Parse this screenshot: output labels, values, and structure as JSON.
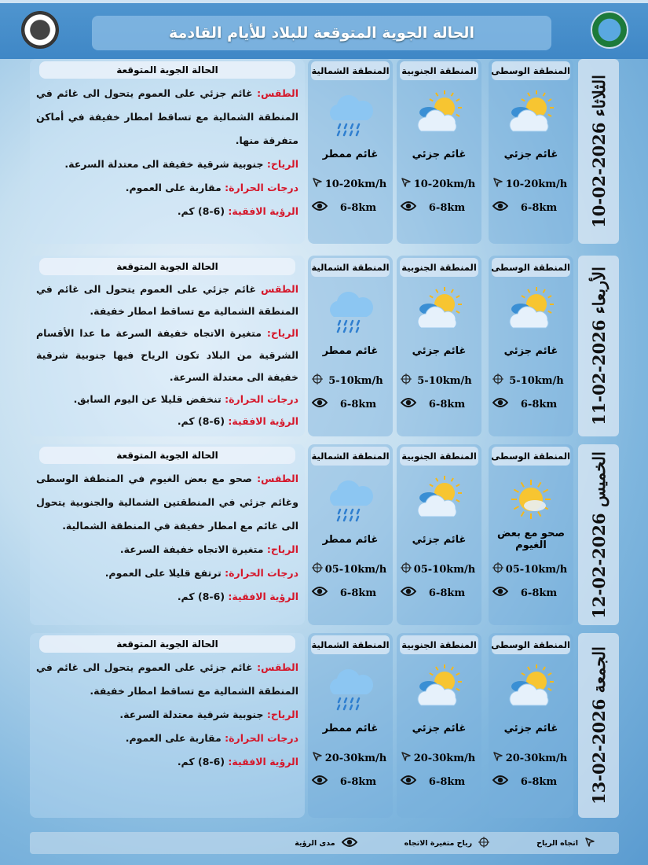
{
  "header": {
    "title": "الحالة الجوية المتوقعة للبلاد للأيام القادمة"
  },
  "colors": {
    "label_red": "#d5172a",
    "band_blue": "#3f87c6"
  },
  "panel_heading": "الحالة الجوية المتوقعة",
  "region_names": [
    "المنطقة الوسطى",
    "المنطقة الجنوبية",
    "المنطقة الشمالية"
  ],
  "days": [
    {
      "date": "الثلاثاء 2026-02-10",
      "regions": [
        {
          "icon": "partly-cloudy-icon",
          "condition": "غائم جزئي",
          "wind_icon": "wind-direction-icon",
          "wind": "10-20km/h",
          "visibility": "6-8km"
        },
        {
          "icon": "partly-cloudy-icon",
          "condition": "غائم جزئي",
          "wind_icon": "wind-direction-icon",
          "wind": "10-20km/h",
          "visibility": "6-8km"
        },
        {
          "icon": "rain-cloud-icon",
          "condition": "غائم ممطر",
          "wind_icon": "wind-direction-icon",
          "wind": "10-20km/h",
          "visibility": "6-8km"
        }
      ],
      "lines": [
        {
          "label": "الطقس:",
          "text": "غائم جزئي على العموم يتحول الى غائم في المنطقة الشمالية مع تساقط امطار خفيفة في أماكن متفرقة منها."
        },
        {
          "label": "الرياح:",
          "text": "جنوبية شرقية خفيفة الى معتدلة السرعة."
        },
        {
          "label": "درجات الحرارة:",
          "text": "مقاربة على العموم."
        },
        {
          "label": "الرؤية الافقية:",
          "text": "(6-8) كم."
        }
      ]
    },
    {
      "date": "الأربعاء 2026-02-11",
      "regions": [
        {
          "icon": "partly-cloudy-icon",
          "condition": "غائم جزئي",
          "wind_icon": "variable-wind-icon",
          "wind": "5-10km/h",
          "visibility": "6-8km"
        },
        {
          "icon": "partly-cloudy-icon",
          "condition": "غائم جزئي",
          "wind_icon": "variable-wind-icon",
          "wind": "5-10km/h",
          "visibility": "6-8km"
        },
        {
          "icon": "rain-cloud-icon",
          "condition": "غائم ممطر",
          "wind_icon": "variable-wind-icon",
          "wind": "5-10km/h",
          "visibility": "6-8km"
        }
      ],
      "lines": [
        {
          "label": "الطقس",
          "text": "غائم جزئي على العموم يتحول الى غائم في المنطقة الشمالية مع تساقط امطار خفيفة."
        },
        {
          "label": "الرياح:",
          "text": "متغيرة الاتجاه خفيفة السرعة ما عدا الأقسام الشرقية من البلاد تكون الرياح فيها جنوبية شرقية خفيفة الى معتدلة السرعة."
        },
        {
          "label": "درجات الحرارة:",
          "text": "تنخفض قليلا عن اليوم السابق."
        },
        {
          "label": "الرؤية الافقية:",
          "text": "(6-8) كم."
        }
      ]
    },
    {
      "date": "الخميس 2026-02-12",
      "regions": [
        {
          "icon": "mostly-sunny-icon",
          "condition": "صحو مع بعض الغيوم",
          "wind_icon": "variable-wind-icon",
          "wind": "05-10km/h",
          "visibility": "6-8km"
        },
        {
          "icon": "partly-cloudy-icon",
          "condition": "غائم جزئي",
          "wind_icon": "variable-wind-icon",
          "wind": "05-10km/h",
          "visibility": "6-8km"
        },
        {
          "icon": "rain-cloud-icon",
          "condition": "غائم ممطر",
          "wind_icon": "variable-wind-icon",
          "wind": "05-10km/h",
          "visibility": "6-8km"
        }
      ],
      "lines": [
        {
          "label": "الطقس:",
          "text": "صحو مع بعض الغيوم في المنطقة الوسطى وغائم جزئي في المنطقتين الشمالية والجنوبية يتحول الى غائم مع امطار خفيفة في المنطقة الشمالية."
        },
        {
          "label": "الرياح:",
          "text": "متغيرة الاتجاه خفيفة السرعة."
        },
        {
          "label": "درجات الحرارة:",
          "text": "ترتفع قليلا على العموم."
        },
        {
          "label": "الرؤية الافقية:",
          "text": "(6-8) كم."
        }
      ]
    },
    {
      "date": "الجمعة 2026-02-13",
      "regions": [
        {
          "icon": "partly-cloudy-icon",
          "condition": "غائم جزئي",
          "wind_icon": "wind-direction-icon",
          "wind": "20-30km/h",
          "visibility": "6-8km"
        },
        {
          "icon": "partly-cloudy-icon",
          "condition": "غائم جزئي",
          "wind_icon": "wind-direction-icon",
          "wind": "20-30km/h",
          "visibility": "6-8km"
        },
        {
          "icon": "rain-cloud-icon",
          "condition": "غائم ممطر",
          "wind_icon": "wind-direction-icon",
          "wind": "20-30km/h",
          "visibility": "6-8km"
        }
      ],
      "lines": [
        {
          "label": "الطقس:",
          "text": "غائم جزئي على العموم يتحول الى غائم في المنطقة الشمالية مع تساقط امطار خفيفة."
        },
        {
          "label": "الرياح:",
          "text": "جنوبية شرقية معتدلة السرعة."
        },
        {
          "label": "درجات الحرارة:",
          "text": "مقاربة على العموم."
        },
        {
          "label": "الرؤية الافقية:",
          "text": "(6-8) كم."
        }
      ]
    }
  ],
  "legend": [
    {
      "icon": "wind-direction-icon",
      "label": "اتجاه الرياح"
    },
    {
      "icon": "variable-wind-icon",
      "label": "رياح متغيرة الاتجاه"
    },
    {
      "icon": "visibility-icon",
      "label": "مدى الرؤية"
    }
  ]
}
